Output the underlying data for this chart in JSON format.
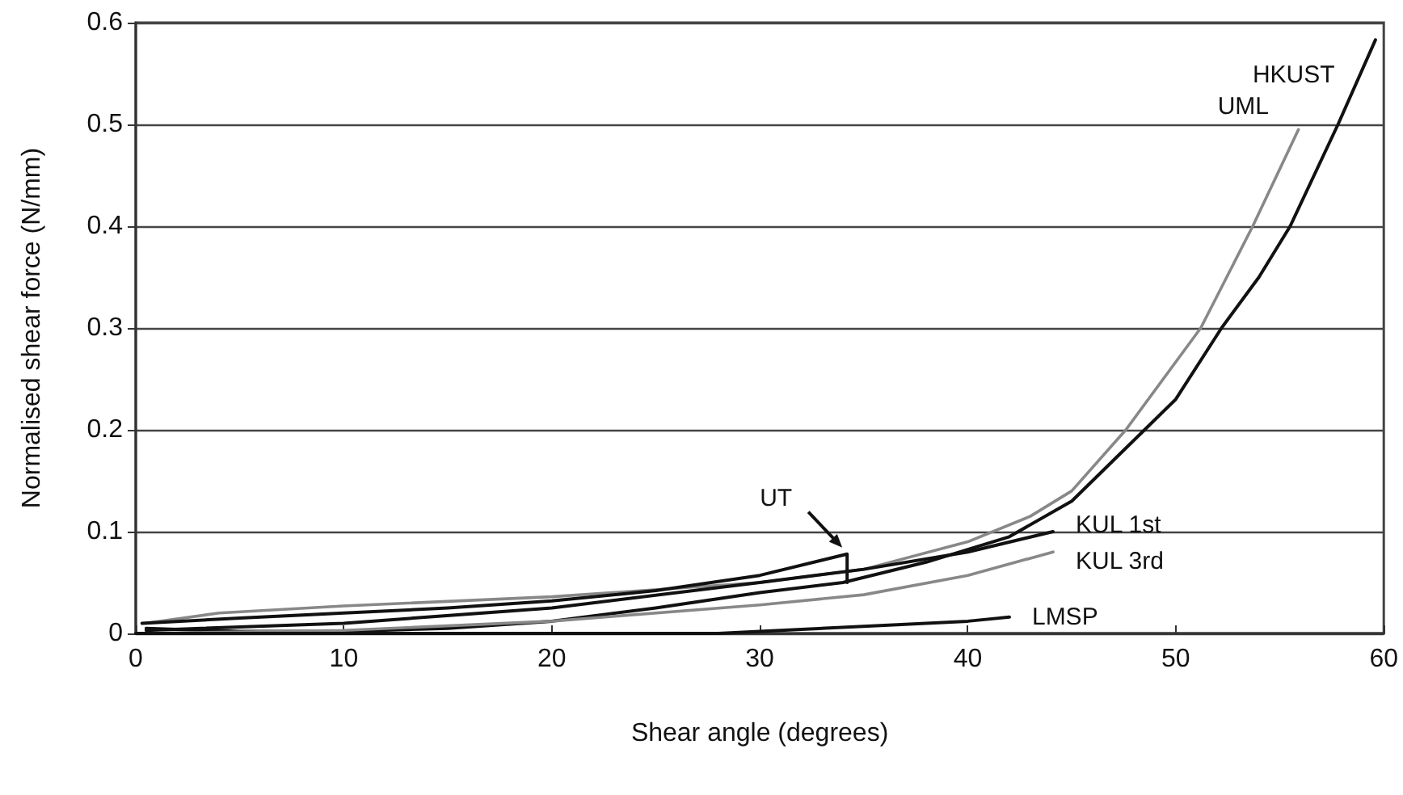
{
  "chart_data": {
    "type": "line",
    "xlabel": "Shear angle (degrees)",
    "ylabel": "Normalised shear force (N/mm)",
    "xlim": [
      0,
      60
    ],
    "xticks": [
      0,
      10,
      20,
      30,
      40,
      50,
      60
    ],
    "ylim": [
      0,
      0.6
    ],
    "yticks": [
      0,
      0.1,
      0.2,
      0.3,
      0.4,
      0.5,
      0.6
    ],
    "grid": "y",
    "legend": false,
    "marker": "none",
    "line_style": "solid",
    "series": [
      {
        "name": "HKUST",
        "color": "#111111",
        "x": [
          0.5,
          5,
          10,
          15,
          20,
          25,
          30,
          34,
          38,
          42,
          45,
          48.5,
          50,
          52.2,
          54,
          55.5,
          57.8,
          59.6
        ],
        "values": [
          0.005,
          0.002,
          0.002,
          0.005,
          0.012,
          0.025,
          0.04,
          0.05,
          0.07,
          0.095,
          0.13,
          0.2,
          0.23,
          0.3,
          0.35,
          0.4,
          0.5,
          0.583
        ]
      },
      {
        "name": "UML",
        "color": "#888888",
        "x": [
          0.5,
          4,
          10,
          20,
          30,
          35,
          40,
          43,
          45,
          47.6,
          51.2,
          53.7,
          55.9
        ],
        "values": [
          0.01,
          0.02,
          0.027,
          0.036,
          0.05,
          0.063,
          0.09,
          0.115,
          0.14,
          0.2,
          0.3,
          0.4,
          0.495
        ]
      },
      {
        "name": "UT",
        "color": "#111111",
        "x": [
          0.3,
          5,
          10,
          15,
          20,
          25,
          30,
          34.2,
          34.2
        ],
        "values": [
          0.01,
          0.015,
          0.02,
          0.025,
          0.032,
          0.042,
          0.057,
          0.078,
          0.05
        ]
      },
      {
        "name": "KUL 1st",
        "color": "#111111",
        "x": [
          0.5,
          10,
          20,
          30,
          35,
          40,
          44.1
        ],
        "values": [
          0.003,
          0.01,
          0.025,
          0.05,
          0.063,
          0.08,
          0.1
        ]
      },
      {
        "name": "KUL 3rd",
        "color": "#888888",
        "x": [
          0,
          10,
          20,
          30,
          35,
          40,
          44.1
        ],
        "values": [
          0,
          0.003,
          0.012,
          0.028,
          0.038,
          0.057,
          0.08
        ]
      },
      {
        "name": "LMSP",
        "color": "#111111",
        "x": [
          0,
          28,
          32,
          36,
          40,
          42
        ],
        "values": [
          0,
          0,
          0.004,
          0.008,
          0.012,
          0.016
        ]
      }
    ]
  }
}
